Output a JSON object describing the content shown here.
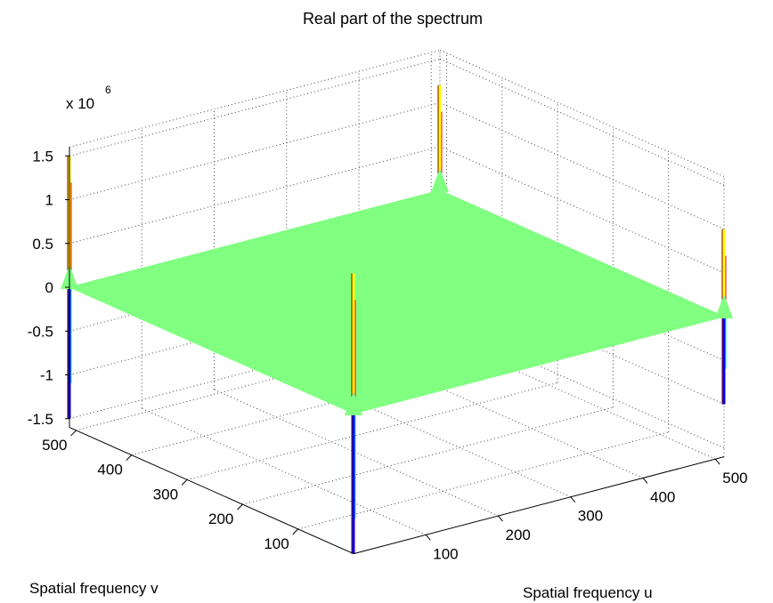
{
  "chart_data": {
    "type": "surface3d",
    "title": "Real part of the spectrum",
    "xlabel": "Spatial frequency u",
    "ylabel": "Spatial frequency v",
    "zlabel": "",
    "z_exponent_label": "x 10",
    "z_exponent": "6",
    "xlim": [
      0,
      512
    ],
    "ylim": [
      0,
      512
    ],
    "zlim": [
      -1.6,
      1.6
    ],
    "x_ticks": [
      100,
      200,
      300,
      400,
      500
    ],
    "x_tick_labels": [
      "100",
      "200",
      "300",
      "400",
      "500"
    ],
    "y_ticks": [
      100,
      200,
      300,
      400,
      500
    ],
    "y_tick_labels": [
      "100",
      "200",
      "300",
      "400",
      "500"
    ],
    "z_ticks": [
      -1.5,
      -1,
      -0.5,
      0,
      0.5,
      1,
      1.5
    ],
    "z_tick_labels": [
      "-1.5",
      "-1",
      "-0.5",
      "0",
      "0.5",
      "1",
      "1.5"
    ],
    "grid": true,
    "surface_base_level": 0,
    "surface_color": "#80ff80",
    "spikes": [
      {
        "u": 0,
        "v": 0,
        "zmax": 1.6,
        "zmin": -1.6
      },
      {
        "u": 512,
        "v": 512,
        "zmax": 1.2,
        "zmin": 0
      },
      {
        "u": 0,
        "v": 512,
        "zmax": 1.5,
        "zmin": -1.5
      },
      {
        "u": 512,
        "v": 0,
        "zmax": 1.0,
        "zmin": -1.0
      }
    ],
    "colormap": [
      "#000080",
      "#0000ff",
      "#00ffff",
      "#80ff80",
      "#ffff00",
      "#ff8000",
      "#ff0000",
      "#800000"
    ]
  }
}
